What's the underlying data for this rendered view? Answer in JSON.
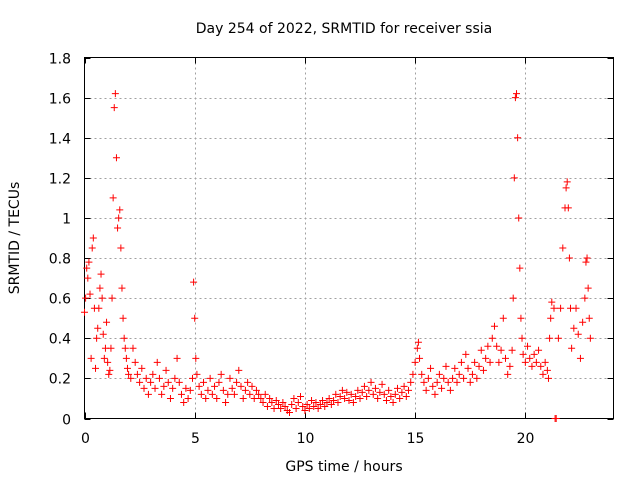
{
  "chart_data": {
    "type": "scatter",
    "title": "Day 254 of 2022, SRMTID for receiver ssia",
    "xlabel": "GPS time / hours",
    "ylabel": "SRMTID / TECUs",
    "xlim": [
      0,
      24
    ],
    "ylim": [
      0,
      1.8
    ],
    "grid": true,
    "x_ticks": [
      0,
      5,
      10,
      15,
      20
    ],
    "x_tick_labels": [
      "0",
      "5",
      "10",
      "15",
      "20"
    ],
    "y_ticks": [
      0,
      0.2,
      0.4,
      0.6,
      0.8,
      1.0,
      1.2,
      1.4,
      1.6,
      1.8
    ],
    "y_tick_labels": [
      "0",
      "0.2",
      "0.4",
      "0.6",
      "0.8",
      "1",
      "1.2",
      "1.4",
      "1.6",
      "1.8"
    ],
    "series": [
      {
        "name": "SRMTID",
        "marker": "+",
        "color": "#ff0000",
        "points": [
          [
            0.0,
            0.53
          ],
          [
            0.05,
            0.6
          ],
          [
            0.1,
            0.75
          ],
          [
            0.15,
            0.7
          ],
          [
            0.2,
            0.78
          ],
          [
            0.25,
            0.62
          ],
          [
            0.3,
            0.3
          ],
          [
            0.35,
            0.85
          ],
          [
            0.4,
            0.9
          ],
          [
            0.45,
            0.55
          ],
          [
            0.5,
            0.25
          ],
          [
            0.55,
            0.4
          ],
          [
            0.6,
            0.45
          ],
          [
            0.65,
            0.55
          ],
          [
            0.7,
            0.65
          ],
          [
            0.75,
            0.72
          ],
          [
            0.8,
            0.6
          ],
          [
            0.85,
            0.42
          ],
          [
            0.9,
            0.3
          ],
          [
            0.95,
            0.35
          ],
          [
            1.0,
            0.48
          ],
          [
            1.05,
            0.28
          ],
          [
            1.1,
            0.22
          ],
          [
            1.15,
            0.24
          ],
          [
            1.2,
            0.35
          ],
          [
            1.25,
            0.6
          ],
          [
            1.3,
            1.1
          ],
          [
            1.35,
            1.55
          ],
          [
            1.4,
            1.62
          ],
          [
            1.45,
            1.3
          ],
          [
            1.5,
            0.95
          ],
          [
            1.55,
            1.0
          ],
          [
            1.6,
            1.04
          ],
          [
            1.65,
            0.85
          ],
          [
            1.7,
            0.65
          ],
          [
            1.75,
            0.5
          ],
          [
            1.8,
            0.4
          ],
          [
            1.85,
            0.35
          ],
          [
            1.9,
            0.3
          ],
          [
            1.95,
            0.25
          ],
          [
            2.0,
            0.22
          ],
          [
            2.1,
            0.2
          ],
          [
            2.2,
            0.35
          ],
          [
            2.3,
            0.28
          ],
          [
            2.4,
            0.22
          ],
          [
            2.5,
            0.18
          ],
          [
            2.6,
            0.25
          ],
          [
            2.7,
            0.15
          ],
          [
            2.8,
            0.2
          ],
          [
            2.9,
            0.12
          ],
          [
            3.0,
            0.18
          ],
          [
            3.1,
            0.22
          ],
          [
            3.2,
            0.15
          ],
          [
            3.3,
            0.28
          ],
          [
            3.4,
            0.2
          ],
          [
            3.5,
            0.12
          ],
          [
            3.6,
            0.16
          ],
          [
            3.7,
            0.24
          ],
          [
            3.8,
            0.18
          ],
          [
            3.9,
            0.1
          ],
          [
            4.0,
            0.15
          ],
          [
            4.1,
            0.2
          ],
          [
            4.2,
            0.3
          ],
          [
            4.3,
            0.18
          ],
          [
            4.4,
            0.12
          ],
          [
            4.5,
            0.08
          ],
          [
            4.6,
            0.15
          ],
          [
            4.7,
            0.1
          ],
          [
            4.8,
            0.14
          ],
          [
            4.9,
            0.2
          ],
          [
            4.95,
            0.68
          ],
          [
            5.0,
            0.5
          ],
          [
            5.05,
            0.3
          ],
          [
            5.1,
            0.22
          ],
          [
            5.2,
            0.16
          ],
          [
            5.3,
            0.12
          ],
          [
            5.4,
            0.18
          ],
          [
            5.5,
            0.1
          ],
          [
            5.6,
            0.14
          ],
          [
            5.7,
            0.2
          ],
          [
            5.8,
            0.12
          ],
          [
            5.9,
            0.16
          ],
          [
            6.0,
            0.1
          ],
          [
            6.1,
            0.18
          ],
          [
            6.2,
            0.22
          ],
          [
            6.3,
            0.14
          ],
          [
            6.4,
            0.08
          ],
          [
            6.5,
            0.12
          ],
          [
            6.6,
            0.2
          ],
          [
            6.7,
            0.15
          ],
          [
            6.8,
            0.12
          ],
          [
            6.9,
            0.18
          ],
          [
            7.0,
            0.24
          ],
          [
            7.1,
            0.16
          ],
          [
            7.2,
            0.1
          ],
          [
            7.3,
            0.14
          ],
          [
            7.4,
            0.18
          ],
          [
            7.5,
            0.12
          ],
          [
            7.6,
            0.16
          ],
          [
            7.7,
            0.1
          ],
          [
            7.8,
            0.14
          ],
          [
            7.9,
            0.12
          ],
          [
            8.0,
            0.1
          ],
          [
            8.1,
            0.08
          ],
          [
            8.2,
            0.12
          ],
          [
            8.3,
            0.06
          ],
          [
            8.4,
            0.1
          ],
          [
            8.5,
            0.08
          ],
          [
            8.6,
            0.05
          ],
          [
            8.7,
            0.09
          ],
          [
            8.8,
            0.07
          ],
          [
            8.9,
            0.05
          ],
          [
            9.0,
            0.08
          ],
          [
            9.1,
            0.06
          ],
          [
            9.2,
            0.04
          ],
          [
            9.3,
            0.03
          ],
          [
            9.4,
            0.07
          ],
          [
            9.5,
            0.1
          ],
          [
            9.6,
            0.05
          ],
          [
            9.7,
            0.08
          ],
          [
            9.8,
            0.11
          ],
          [
            9.9,
            0.06
          ],
          [
            10.0,
            0.04
          ],
          [
            10.1,
            0.07
          ],
          [
            10.2,
            0.05
          ],
          [
            10.3,
            0.09
          ],
          [
            10.4,
            0.06
          ],
          [
            10.5,
            0.08
          ],
          [
            10.6,
            0.05
          ],
          [
            10.7,
            0.07
          ],
          [
            10.8,
            0.09
          ],
          [
            10.9,
            0.06
          ],
          [
            11.0,
            0.08
          ],
          [
            11.1,
            0.1
          ],
          [
            11.2,
            0.07
          ],
          [
            11.3,
            0.09
          ],
          [
            11.4,
            0.12
          ],
          [
            11.5,
            0.08
          ],
          [
            11.6,
            0.11
          ],
          [
            11.7,
            0.14
          ],
          [
            11.8,
            0.1
          ],
          [
            11.9,
            0.13
          ],
          [
            12.0,
            0.09
          ],
          [
            12.1,
            0.12
          ],
          [
            12.2,
            0.08
          ],
          [
            12.3,
            0.11
          ],
          [
            12.4,
            0.14
          ],
          [
            12.5,
            0.1
          ],
          [
            12.6,
            0.13
          ],
          [
            12.7,
            0.16
          ],
          [
            12.8,
            0.11
          ],
          [
            12.9,
            0.14
          ],
          [
            13.0,
            0.18
          ],
          [
            13.1,
            0.12
          ],
          [
            13.2,
            0.15
          ],
          [
            13.3,
            0.1
          ],
          [
            13.4,
            0.13
          ],
          [
            13.5,
            0.17
          ],
          [
            13.6,
            0.12
          ],
          [
            13.7,
            0.09
          ],
          [
            13.8,
            0.14
          ],
          [
            13.9,
            0.11
          ],
          [
            14.0,
            0.08
          ],
          [
            14.1,
            0.12
          ],
          [
            14.2,
            0.15
          ],
          [
            14.3,
            0.1
          ],
          [
            14.4,
            0.13
          ],
          [
            14.5,
            0.16
          ],
          [
            14.6,
            0.11
          ],
          [
            14.7,
            0.14
          ],
          [
            14.8,
            0.18
          ],
          [
            14.9,
            0.22
          ],
          [
            15.0,
            0.28
          ],
          [
            15.1,
            0.35
          ],
          [
            15.15,
            0.38
          ],
          [
            15.2,
            0.3
          ],
          [
            15.3,
            0.22
          ],
          [
            15.4,
            0.18
          ],
          [
            15.5,
            0.14
          ],
          [
            15.6,
            0.2
          ],
          [
            15.7,
            0.25
          ],
          [
            15.8,
            0.16
          ],
          [
            15.9,
            0.12
          ],
          [
            16.0,
            0.18
          ],
          [
            16.1,
            0.22
          ],
          [
            16.2,
            0.15
          ],
          [
            16.3,
            0.2
          ],
          [
            16.4,
            0.26
          ],
          [
            16.5,
            0.18
          ],
          [
            16.6,
            0.14
          ],
          [
            16.7,
            0.2
          ],
          [
            16.8,
            0.25
          ],
          [
            16.9,
            0.18
          ],
          [
            17.0,
            0.22
          ],
          [
            17.1,
            0.28
          ],
          [
            17.2,
            0.2
          ],
          [
            17.3,
            0.32
          ],
          [
            17.4,
            0.25
          ],
          [
            17.5,
            0.18
          ],
          [
            17.6,
            0.22
          ],
          [
            17.7,
            0.28
          ],
          [
            17.8,
            0.2
          ],
          [
            17.9,
            0.26
          ],
          [
            18.0,
            0.34
          ],
          [
            18.1,
            0.24
          ],
          [
            18.2,
            0.3
          ],
          [
            18.3,
            0.36
          ],
          [
            18.4,
            0.28
          ],
          [
            18.5,
            0.4
          ],
          [
            18.6,
            0.46
          ],
          [
            18.7,
            0.36
          ],
          [
            18.8,
            0.28
          ],
          [
            18.9,
            0.34
          ],
          [
            19.0,
            0.5
          ],
          [
            19.1,
            0.3
          ],
          [
            19.2,
            0.22
          ],
          [
            19.3,
            0.26
          ],
          [
            19.4,
            0.34
          ],
          [
            19.45,
            0.6
          ],
          [
            19.5,
            1.2
          ],
          [
            19.55,
            1.6
          ],
          [
            19.6,
            1.62
          ],
          [
            19.65,
            1.4
          ],
          [
            19.7,
            1.0
          ],
          [
            19.75,
            0.75
          ],
          [
            19.8,
            0.5
          ],
          [
            19.85,
            0.4
          ],
          [
            19.9,
            0.32
          ],
          [
            20.0,
            0.28
          ],
          [
            20.1,
            0.36
          ],
          [
            20.2,
            0.3
          ],
          [
            20.3,
            0.26
          ],
          [
            20.4,
            0.32
          ],
          [
            20.5,
            0.28
          ],
          [
            20.6,
            0.34
          ],
          [
            20.7,
            0.26
          ],
          [
            20.8,
            0.22
          ],
          [
            20.9,
            0.28
          ],
          [
            21.0,
            0.24
          ],
          [
            21.05,
            0.2
          ],
          [
            21.1,
            0.4
          ],
          [
            21.15,
            0.5
          ],
          [
            21.2,
            0.58
          ],
          [
            21.3,
            0.55
          ],
          [
            21.35,
            0.0
          ],
          [
            21.4,
            0.0
          ],
          [
            21.5,
            0.4
          ],
          [
            21.6,
            0.55
          ],
          [
            21.7,
            0.85
          ],
          [
            21.8,
            1.05
          ],
          [
            21.85,
            1.15
          ],
          [
            21.9,
            1.18
          ],
          [
            21.95,
            1.05
          ],
          [
            22.0,
            0.8
          ],
          [
            22.05,
            0.55
          ],
          [
            22.1,
            0.35
          ],
          [
            22.2,
            0.45
          ],
          [
            22.3,
            0.55
          ],
          [
            22.4,
            0.42
          ],
          [
            22.5,
            0.3
          ],
          [
            22.6,
            0.48
          ],
          [
            22.7,
            0.6
          ],
          [
            22.75,
            0.78
          ],
          [
            22.8,
            0.8
          ],
          [
            22.85,
            0.65
          ],
          [
            22.9,
            0.5
          ],
          [
            22.95,
            0.4
          ]
        ]
      }
    ]
  }
}
